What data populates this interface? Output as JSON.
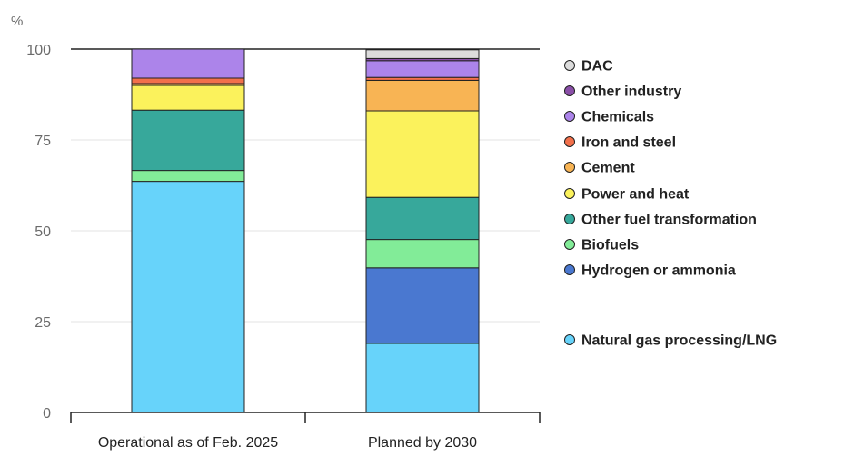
{
  "chart_data": {
    "type": "bar",
    "stacked": true,
    "title": "",
    "ylabel": "%",
    "xlabel": "",
    "ylim": [
      0,
      100
    ],
    "yticks": [
      0,
      25,
      50,
      75,
      100
    ],
    "grid": true,
    "categories": [
      "Operational as of Feb. 2025",
      "Planned by 2030"
    ],
    "series": [
      {
        "name": "Natural gas processing/LNG",
        "color": "#67d3fa",
        "values": [
          63.6,
          19.0
        ]
      },
      {
        "name": "Hydrogen or ammonia",
        "color": "#4a78d0",
        "values": [
          0,
          20.8
        ]
      },
      {
        "name": "Biofuels",
        "color": "#82ec98",
        "values": [
          3.0,
          7.8
        ]
      },
      {
        "name": "Other fuel transformation",
        "color": "#37a89b",
        "values": [
          16.6,
          11.6
        ]
      },
      {
        "name": "Power and heat",
        "color": "#fbf25c",
        "values": [
          6.8,
          23.8
        ]
      },
      {
        "name": "Cement",
        "color": "#f8b454",
        "values": [
          0.5,
          8.4
        ]
      },
      {
        "name": "Iron and steel",
        "color": "#f2704b",
        "values": [
          1.5,
          0.8
        ]
      },
      {
        "name": "Chemicals",
        "color": "#ac84ea",
        "values": [
          8.0,
          4.6
        ]
      },
      {
        "name": "Other industry",
        "color": "#8a4fa8",
        "values": [
          0,
          0.6
        ]
      },
      {
        "name": "DAC",
        "color": "#dcdcdc",
        "values": [
          0,
          2.4
        ]
      }
    ],
    "legend_order": [
      "DAC",
      "Other industry",
      "Chemicals",
      "Iron and steel",
      "Cement",
      "Power and heat",
      "Other fuel transformation",
      "Biofuels",
      "Hydrogen or ammonia",
      "Natural gas processing/LNG"
    ],
    "legend_position": "right"
  }
}
